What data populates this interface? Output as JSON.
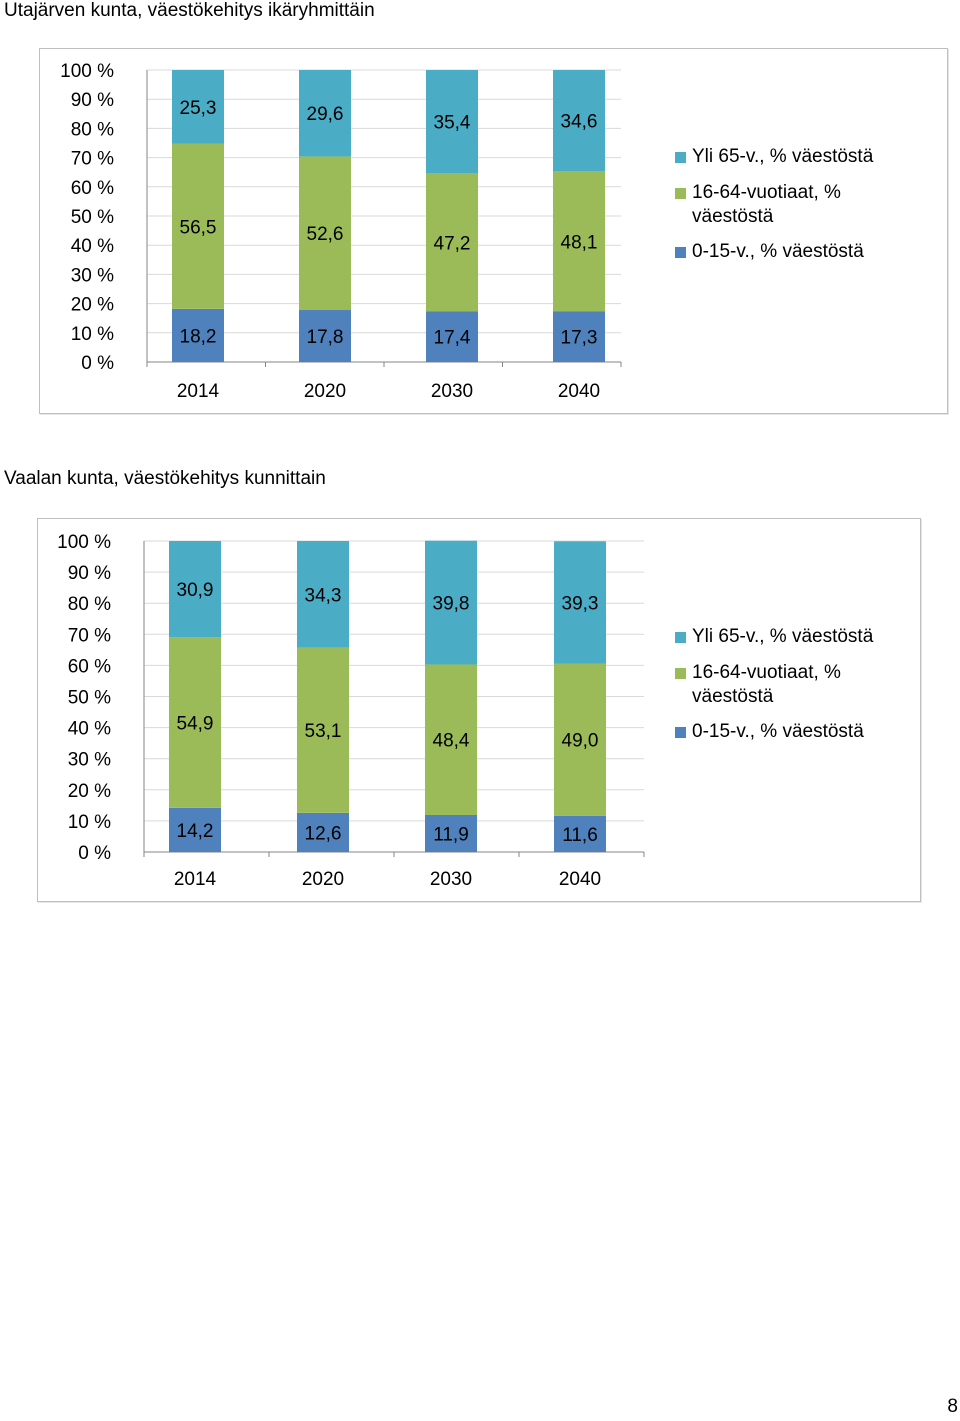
{
  "chart_data": [
    {
      "type": "bar",
      "stacked": true,
      "title": "Utajärven kunta, väestökehitys ikäryhmittäin",
      "categories": [
        "2014",
        "2020",
        "2030",
        "2040"
      ],
      "y_ticks": [
        "100 %",
        "90 %",
        "80 %",
        "70 %",
        "60 %",
        "50 %",
        "40 %",
        "30 %",
        "20 %",
        "10 %",
        "0 %"
      ],
      "ylim": [
        0,
        100
      ],
      "legend_position": "right",
      "series": [
        {
          "name": "0-15-v., % väestöstä",
          "color": "#4f81bd",
          "values": [
            18.2,
            17.8,
            17.4,
            17.3
          ],
          "labels": [
            "18,2",
            "17,8",
            "17,4",
            "17,3"
          ]
        },
        {
          "name": "16-64-vuotiaat, % väestöstä",
          "color": "#9bbb59",
          "values": [
            56.5,
            52.6,
            47.2,
            48.1
          ],
          "labels": [
            "56,5",
            "52,6",
            "47,2",
            "48,1"
          ]
        },
        {
          "name": "Yli 65-v., % väestöstä",
          "color": "#4bacc6",
          "values": [
            25.3,
            29.6,
            35.4,
            34.6
          ],
          "labels": [
            "25,3",
            "29,6",
            "35,4",
            "34,6"
          ]
        }
      ]
    },
    {
      "type": "bar",
      "stacked": true,
      "title": "Vaalan kunta, väestökehitys kunnittain",
      "categories": [
        "2014",
        "2020",
        "2030",
        "2040"
      ],
      "y_ticks": [
        "100 %",
        "90 %",
        "80 %",
        "70 %",
        "60 %",
        "50 %",
        "40 %",
        "30 %",
        "20 %",
        "10 %",
        "0 %"
      ],
      "ylim": [
        0,
        100
      ],
      "legend_position": "right",
      "series": [
        {
          "name": "0-15-v., % väestöstä",
          "color": "#4f81bd",
          "values": [
            14.2,
            12.6,
            11.9,
            11.6
          ],
          "labels": [
            "14,2",
            "12,6",
            "11,9",
            "11,6"
          ]
        },
        {
          "name": "16-64-vuotiaat, % väestöstä",
          "color": "#9bbb59",
          "values": [
            54.9,
            53.1,
            48.4,
            49.0
          ],
          "labels": [
            "54,9",
            "53,1",
            "48,4",
            "49,0"
          ]
        },
        {
          "name": "Yli 65-v., % väestöstä",
          "color": "#4bacc6",
          "values": [
            30.9,
            34.3,
            39.8,
            39.3
          ],
          "labels": [
            "30,9",
            "34,3",
            "39,8",
            "39,3"
          ]
        }
      ]
    }
  ],
  "legend": [
    {
      "label_line1": "Yli 65-v., % väestöstä",
      "label_line2": "",
      "color": "#4bacc6"
    },
    {
      "label_line1": "16-64-vuotiaat, %",
      "label_line2": "väestöstä",
      "color": "#9bbb59"
    },
    {
      "label_line1": "0-15-v., % väestöstä",
      "label_line2": "",
      "color": "#4f81bd"
    }
  ],
  "page": {
    "number": "8"
  }
}
